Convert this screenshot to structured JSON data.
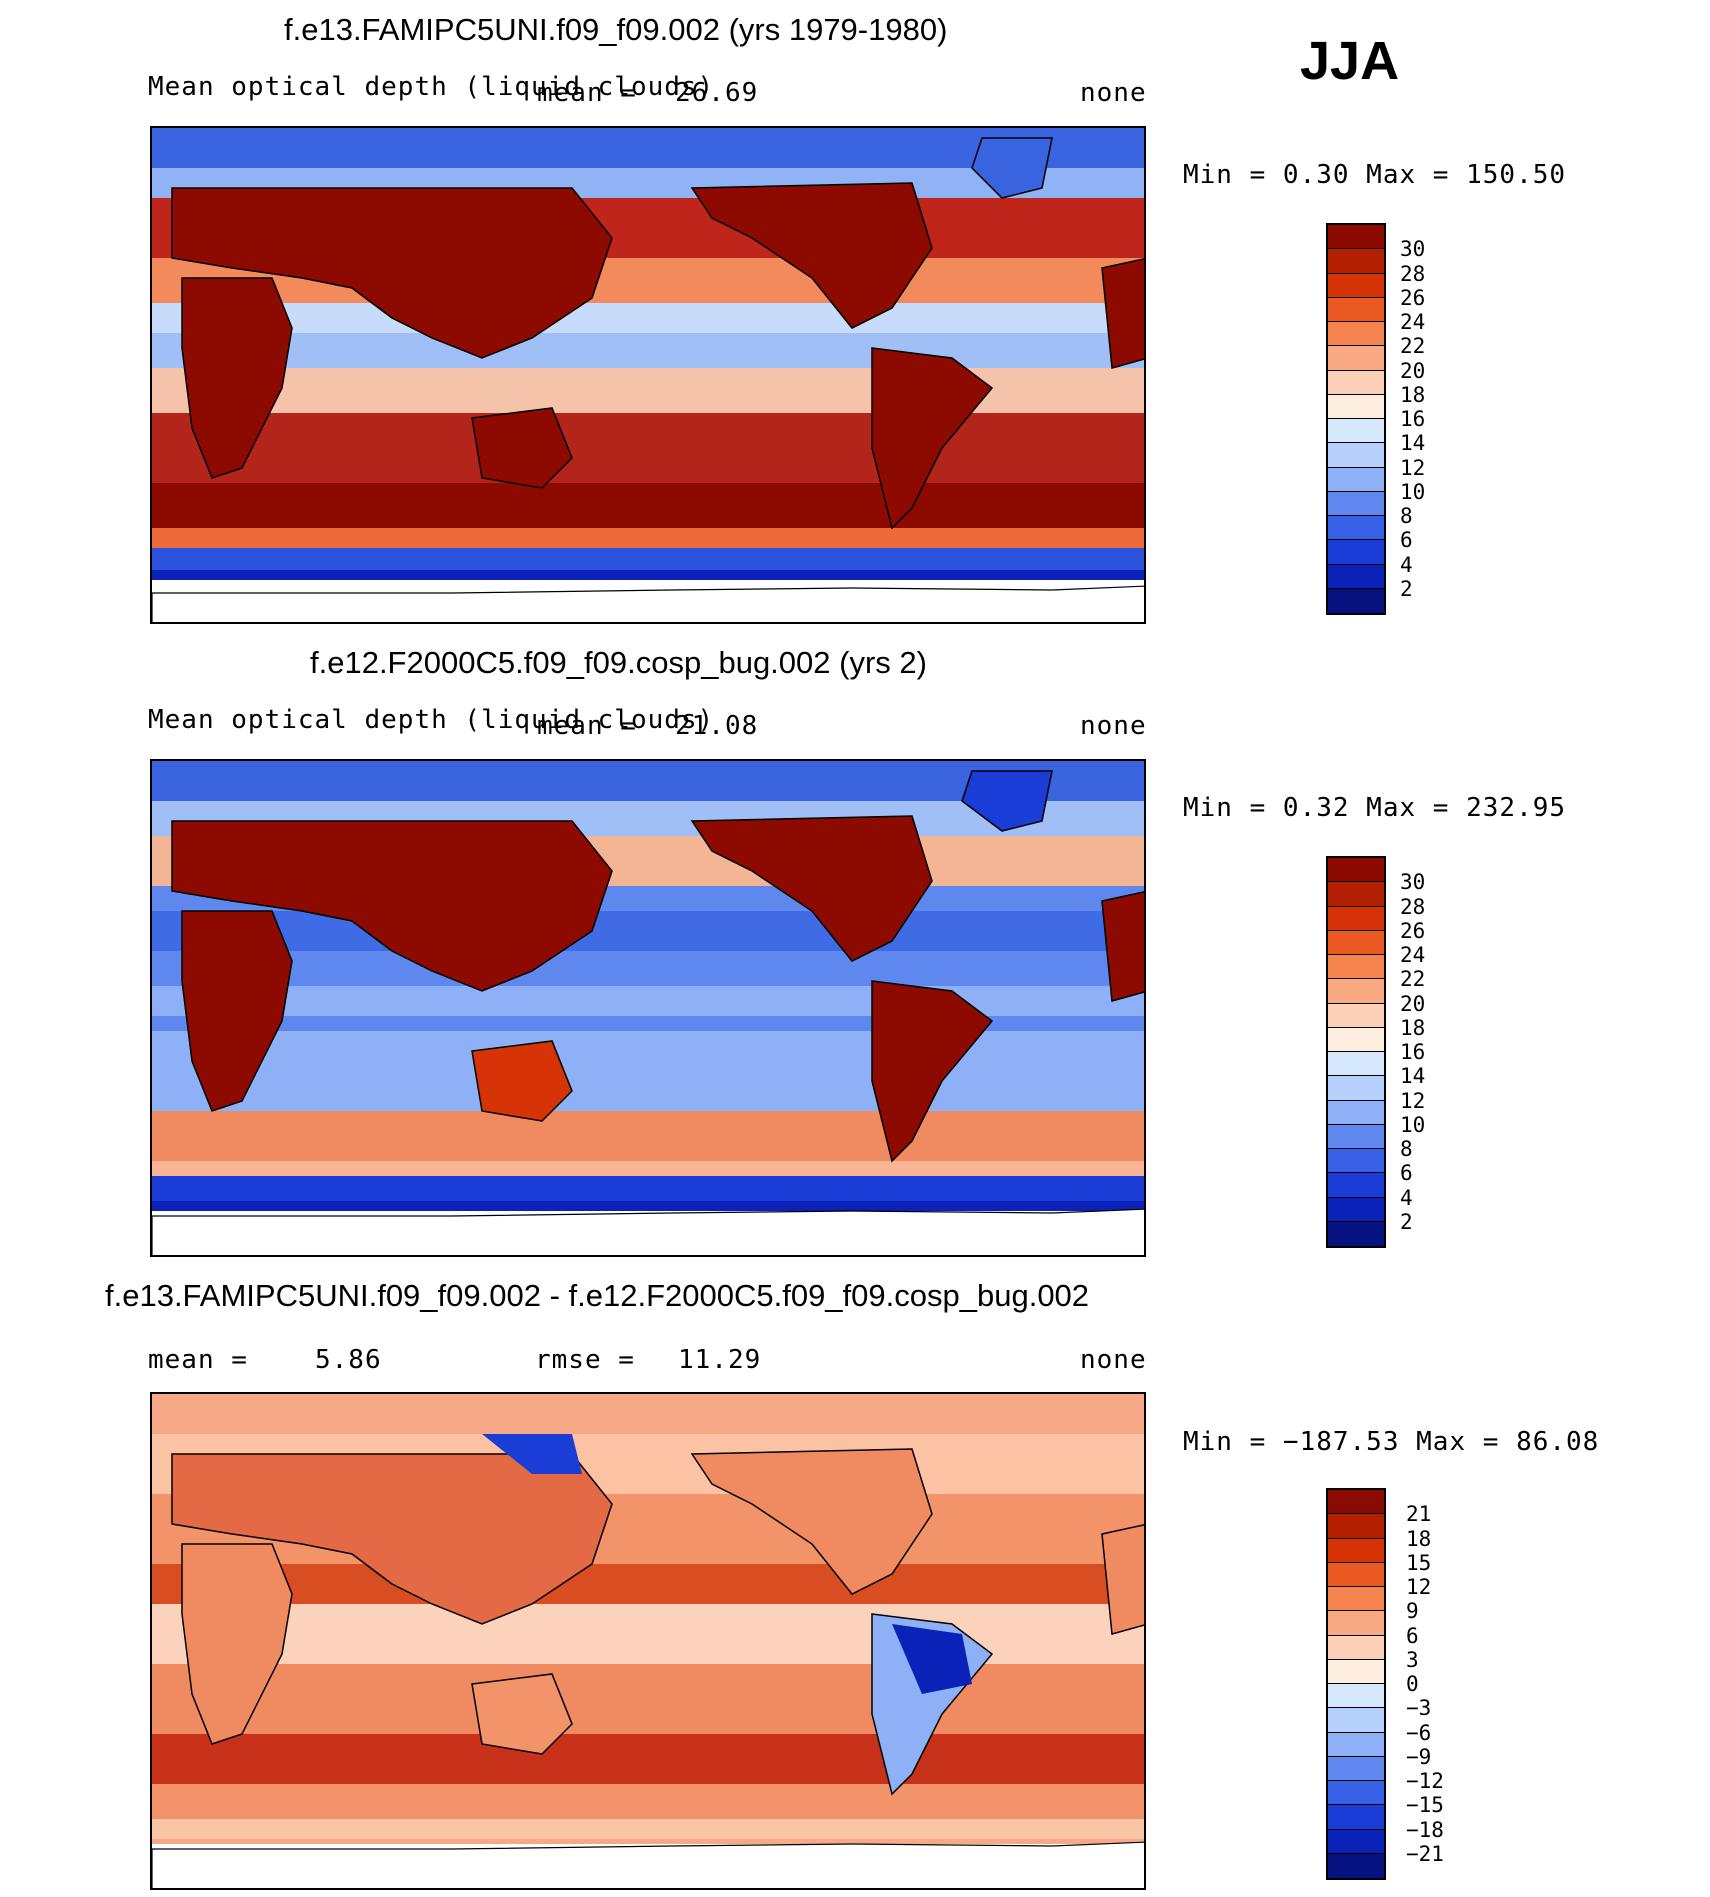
{
  "season": "JJA",
  "panels": [
    {
      "title": "f.e13.FAMIPC5UNI.f09_f09.002 (yrs 1979-1980)",
      "variable": "Mean optical depth (liquid clouds)",
      "mean_label": "mean =",
      "mean_value": "26.69",
      "units": "none",
      "minmax": "Min =    0.30 Max =  150.50"
    },
    {
      "title": "f.e12.F2000C5.f09_f09.cosp_bug.002 (yrs 2)",
      "variable": "Mean optical depth (liquid clouds)",
      "mean_label": "mean =",
      "mean_value": "21.08",
      "units": "none",
      "minmax": "Min =    0.32 Max =  232.95"
    },
    {
      "title": "f.e13.FAMIPC5UNI.f09_f09.002 - f.e12.F2000C5.f09_f09.cosp_bug.002",
      "mean_label": "mean =",
      "mean_value": "5.86",
      "rmse_label": "rmse =",
      "rmse_value": "11.29",
      "units": "none",
      "minmax": "Min = −187.53 Max =   86.08"
    }
  ],
  "chart_data": [
    {
      "type": "heatmap",
      "title": "f.e13.FAMIPC5UNI.f09_f09.002 (yrs 1979-1980)",
      "variable": "Mean optical depth (liquid clouds)",
      "mean": 26.69,
      "min": 0.3,
      "max": 150.5,
      "colorbar": {
        "labels": [
          "30",
          "28",
          "26",
          "24",
          "22",
          "20",
          "18",
          "16",
          "14",
          "12",
          "10",
          "8",
          "6",
          "4",
          "2"
        ],
        "colors": [
          "#8c0a00",
          "#b32000",
          "#d63406",
          "#ec5a23",
          "#f5834d",
          "#f9a982",
          "#fcd0b6",
          "#fdeee0",
          "#d6e8fb",
          "#b4d0fb",
          "#8db0f7",
          "#5f88ef",
          "#3660e6",
          "#1a3dd8",
          "#0a22b8",
          "#05127f"
        ]
      }
    },
    {
      "type": "heatmap",
      "title": "f.e12.F2000C5.f09_f09.cosp_bug.002 (yrs 2)",
      "variable": "Mean optical depth (liquid clouds)",
      "mean": 21.08,
      "min": 0.32,
      "max": 232.95,
      "colorbar": {
        "labels": [
          "30",
          "28",
          "26",
          "24",
          "22",
          "20",
          "18",
          "16",
          "14",
          "12",
          "10",
          "8",
          "6",
          "4",
          "2"
        ],
        "colors": [
          "#8c0a00",
          "#b32000",
          "#d63406",
          "#ec5a23",
          "#f5834d",
          "#f9a982",
          "#fcd0b6",
          "#fdeee0",
          "#d6e8fb",
          "#b4d0fb",
          "#8db0f7",
          "#5f88ef",
          "#3660e6",
          "#1a3dd8",
          "#0a22b8",
          "#05127f"
        ]
      }
    },
    {
      "type": "heatmap",
      "title": "f.e13.FAMIPC5UNI.f09_f09.002 - f.e12.F2000C5.f09_f09.cosp_bug.002",
      "mean": 5.86,
      "rmse": 11.29,
      "min": -187.53,
      "max": 86.08,
      "colorbar": {
        "labels": [
          "21",
          "18",
          "15",
          "12",
          "9",
          "6",
          "3",
          "0",
          "−3",
          "−6",
          "−9",
          "−12",
          "−15",
          "−18",
          "−21"
        ],
        "colors": [
          "#8c0a00",
          "#b32000",
          "#d63406",
          "#ec5a23",
          "#f5834d",
          "#f9a982",
          "#fcd0b6",
          "#fdeee0",
          "#d6e8fb",
          "#b4d0fb",
          "#8db0f7",
          "#5f88ef",
          "#3660e6",
          "#1a3dd8",
          "#0a22b8",
          "#05127f"
        ]
      }
    }
  ]
}
